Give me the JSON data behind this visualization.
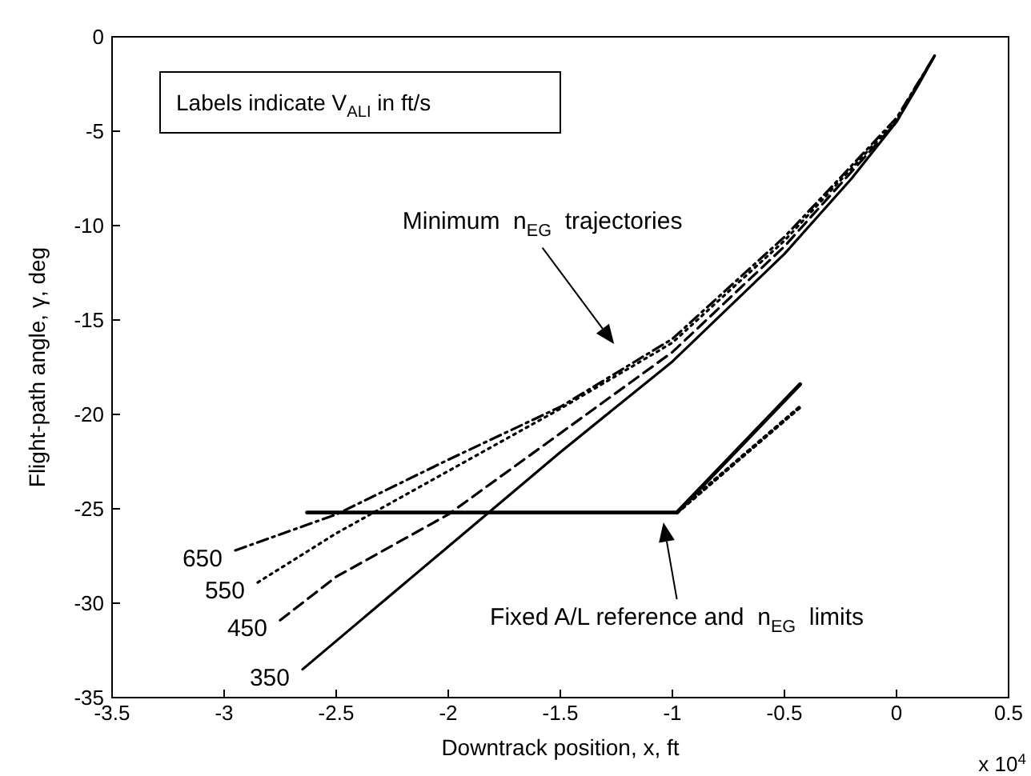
{
  "chart_data": {
    "type": "line",
    "xlabel": "Downtrack position, x, ft",
    "ylabel": "Flight-path angle, γ, deg",
    "xlim": [
      -3.5,
      0.5
    ],
    "xticks": [
      -3.5,
      -3,
      -2.5,
      -2,
      -1.5,
      -1,
      -0.5,
      0,
      0.5
    ],
    "ylim": [
      -35,
      0
    ],
    "yticks": [
      -35,
      -30,
      -25,
      -20,
      -15,
      -10,
      -5,
      0
    ],
    "grid": false,
    "legend": false,
    "marker": "none",
    "series": [
      {
        "name": "650",
        "color": "#000000",
        "line_style": "dashdot",
        "x": [
          -2.95,
          -2.5,
          -2.0,
          -1.5,
          -1.0,
          -0.5,
          0,
          0.17
        ],
        "values": [
          -27.2,
          -25.3,
          -22.4,
          -19.6,
          -16.0,
          -10.6,
          -4.3,
          -1.0
        ]
      },
      {
        "name": "550",
        "color": "#000000",
        "line_style": "dotted",
        "x": [
          -2.85,
          -2.5,
          -2.0,
          -1.5,
          -1.0,
          -0.5,
          0,
          0.17
        ],
        "values": [
          -28.9,
          -26.3,
          -23.0,
          -19.7,
          -16.2,
          -10.8,
          -4.4,
          -1.0
        ]
      },
      {
        "name": "450",
        "color": "#000000",
        "line_style": "dashed",
        "x": [
          -2.75,
          -2.5,
          -2.0,
          -1.5,
          -1.0,
          -0.5,
          0,
          0.17
        ],
        "values": [
          -30.9,
          -28.6,
          -25.3,
          -21.0,
          -16.7,
          -11.1,
          -4.5,
          -1.0
        ]
      },
      {
        "name": "350",
        "color": "#000000",
        "line_style": "solid",
        "x": [
          -2.65,
          -2.4,
          -2.0,
          -1.5,
          -1.0,
          -0.5,
          -0.2,
          0,
          0.1,
          0.17
        ],
        "values": [
          -33.5,
          -31.0,
          -27.0,
          -22.0,
          -17.2,
          -11.5,
          -7.5,
          -4.5,
          -2.5,
          -1.0
        ]
      },
      {
        "color": "#000000",
        "line_style": "solid",
        "x": [
          -2.63,
          -0.98,
          -0.43
        ],
        "values": [
          -25.2,
          -25.2,
          -18.4
        ]
      },
      {
        "color": "#000000",
        "line_style": "dotted",
        "x": [
          -0.98,
          -0.43
        ],
        "values": [
          -25.2,
          -19.6
        ]
      }
    ],
    "annotations": [
      "Labels indicate V$_{ALI}$ in ft/s",
      "Minimum  n$_{EG}$  trajectories",
      "Fixed A/L reference and  n$_{EG}$  limits",
      "x 10$^{4}$"
    ]
  }
}
